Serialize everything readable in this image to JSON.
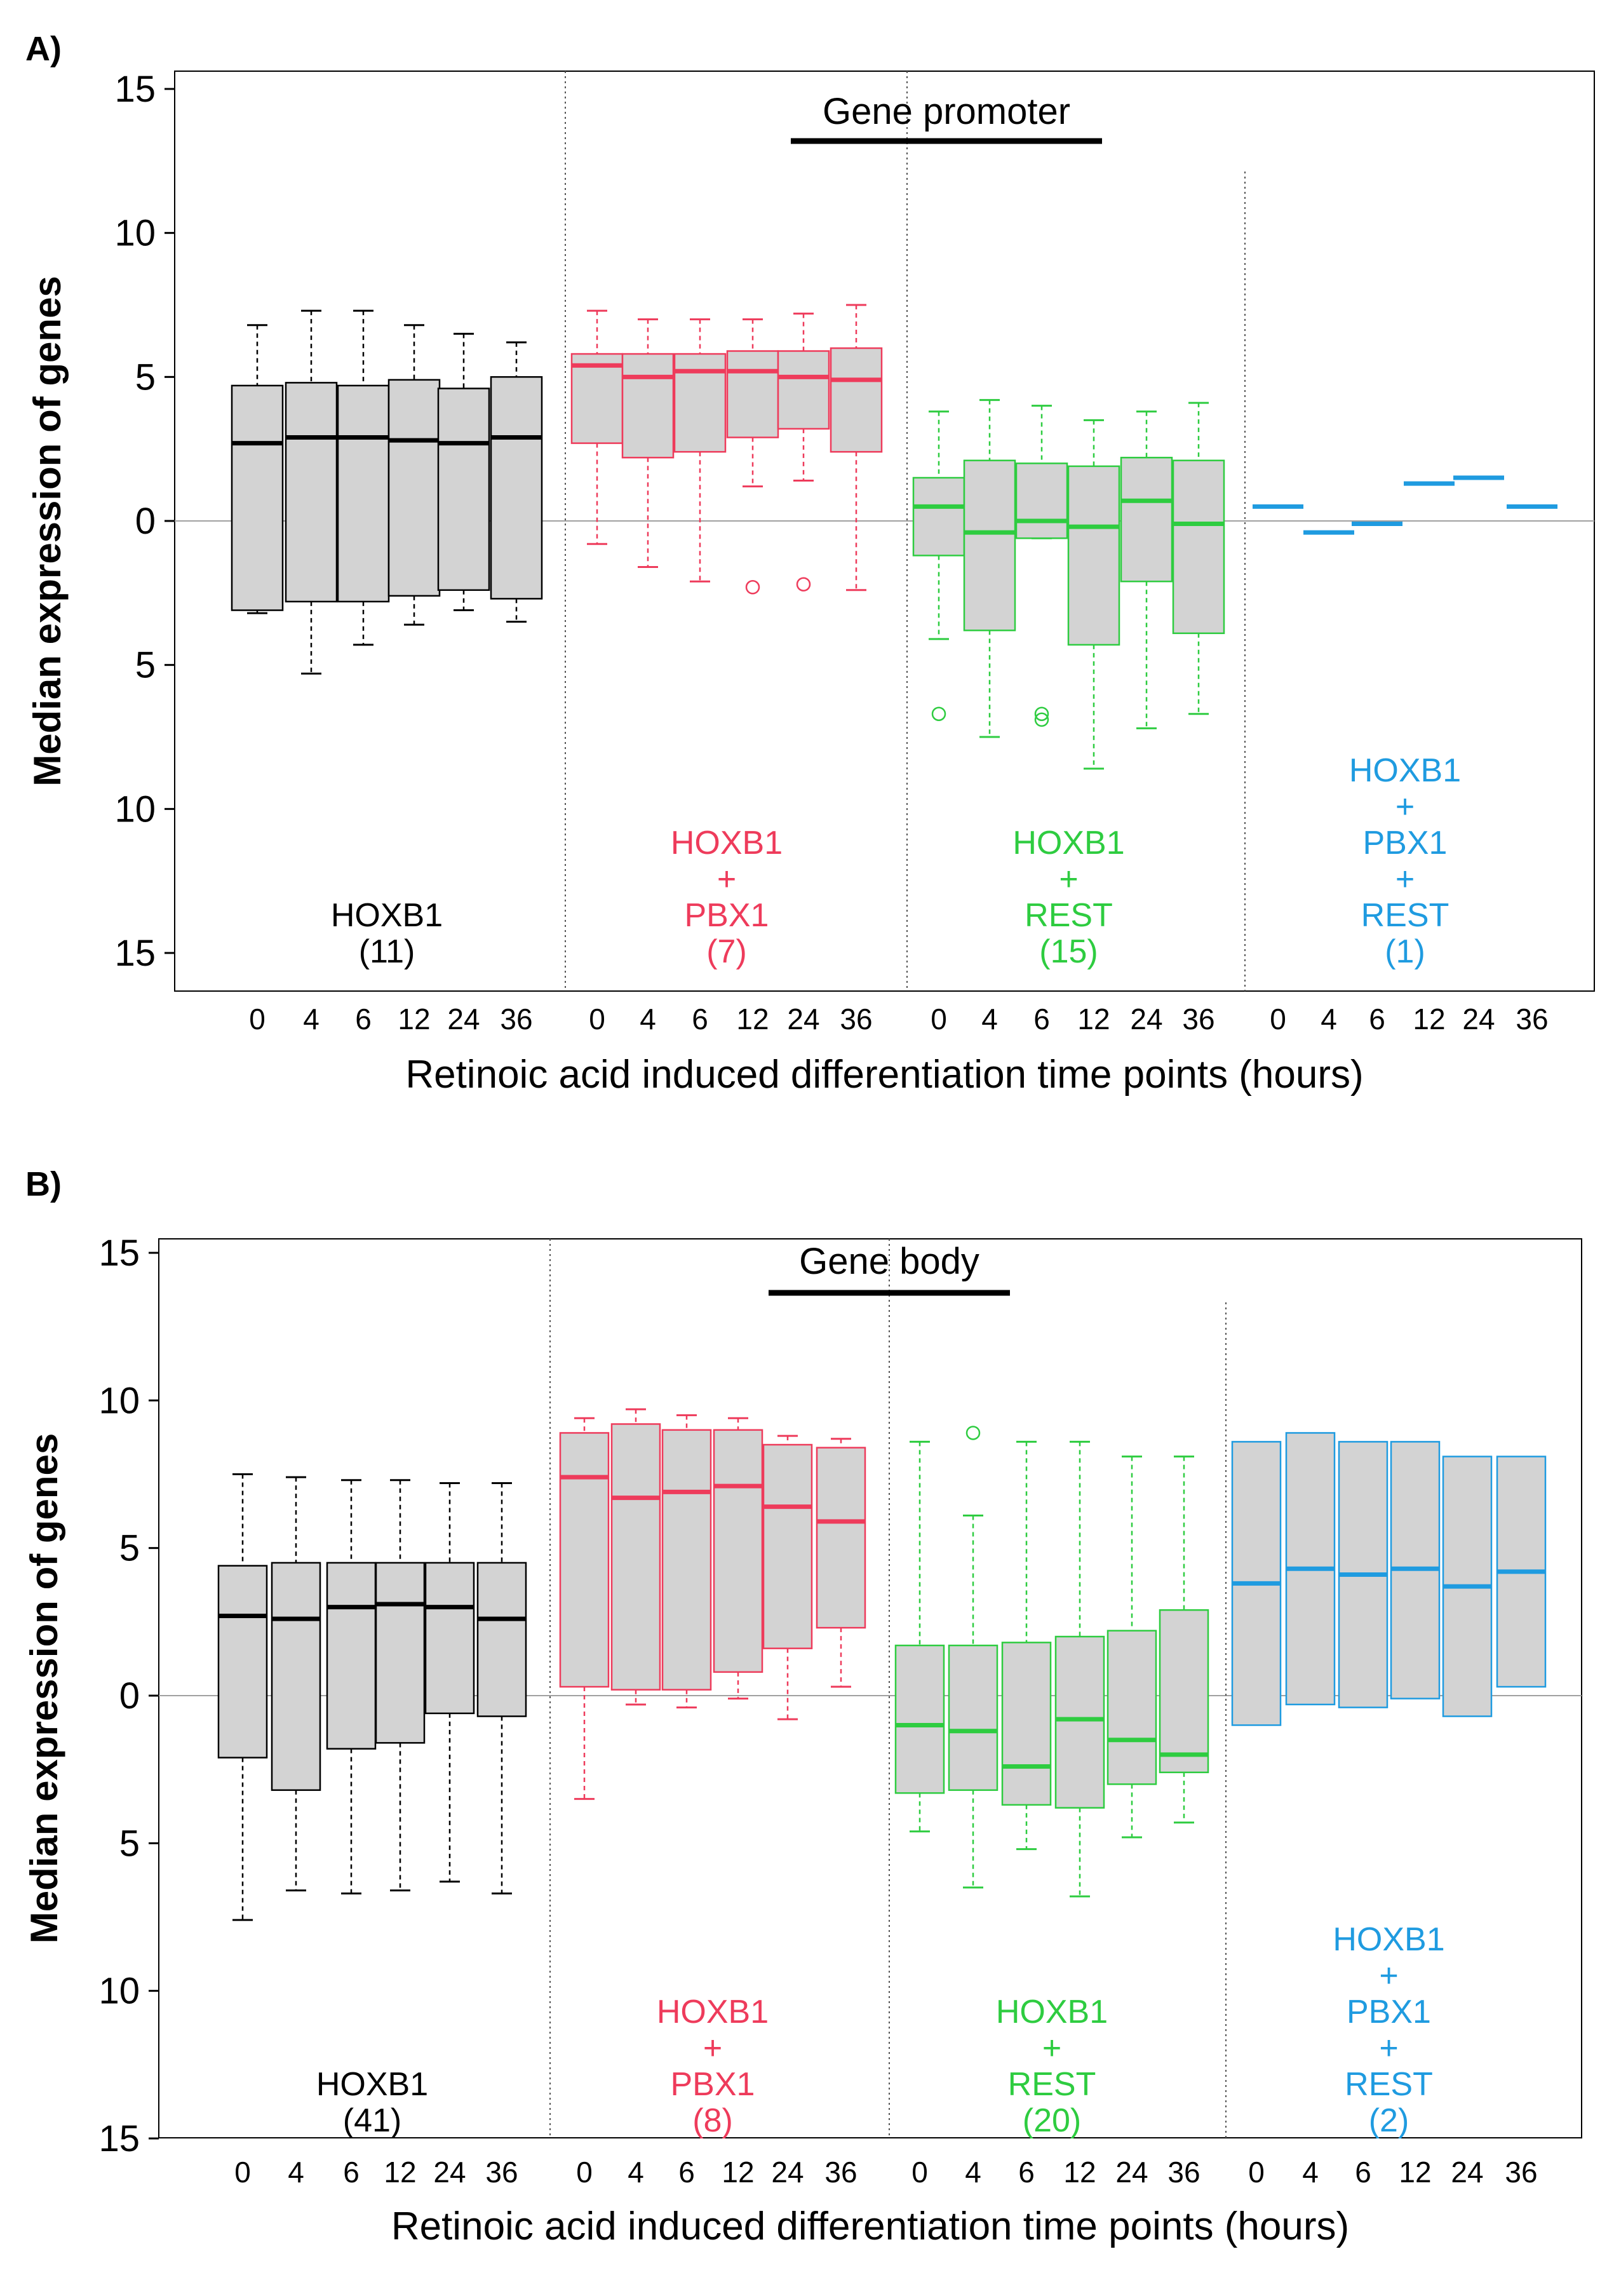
{
  "colors": {
    "group1": "#000000",
    "group2": "#ee3b5b",
    "group3": "#2ecc40",
    "group4": "#1f9be0",
    "box_fill": "#d3d3d3",
    "zero_line": "#a0a0a0",
    "divider": "#555555"
  },
  "chart_data": [
    {
      "type": "boxplot",
      "panel_label": "A)",
      "title": "Gene promoter",
      "ylabel": "Median expression of genes",
      "xlabel": "Retinoic acid induced differentiation time points (hours)",
      "ylim": [
        -16,
        16
      ],
      "yticks": [
        15,
        10,
        5,
        0,
        -5,
        -10,
        -15
      ],
      "ytick_labels": [
        "15",
        "10",
        "5",
        "0",
        "5",
        "10",
        "15"
      ],
      "categories": [
        "0",
        "4",
        "6",
        "12",
        "24",
        "36",
        "0",
        "4",
        "6",
        "12",
        "24",
        "36",
        "0",
        "4",
        "6",
        "12",
        "24",
        "36",
        "0",
        "4",
        "6",
        "12",
        "24",
        "36"
      ],
      "groups": [
        {
          "lines": [
            "HOXB1",
            "(11)"
          ],
          "color": "#000000",
          "boxes": [
            {
              "wmin": -3.2,
              "q1": -3.1,
              "med": 2.7,
              "q3": 4.7,
              "wmax": 6.8,
              "out": []
            },
            {
              "wmin": -5.3,
              "q1": -2.8,
              "med": 2.9,
              "q3": 4.8,
              "wmax": 7.3,
              "out": []
            },
            {
              "wmin": -4.3,
              "q1": -2.8,
              "med": 2.9,
              "q3": 4.7,
              "wmax": 7.3,
              "out": []
            },
            {
              "wmin": -3.6,
              "q1": -2.6,
              "med": 2.8,
              "q3": 4.9,
              "wmax": 6.8,
              "out": []
            },
            {
              "wmin": -3.1,
              "q1": -2.4,
              "med": 2.7,
              "q3": 4.6,
              "wmax": 6.5,
              "out": []
            },
            {
              "wmin": -3.5,
              "q1": -2.7,
              "med": 2.9,
              "q3": 5.0,
              "wmax": 6.2,
              "out": []
            }
          ]
        },
        {
          "lines": [
            "HOXB1",
            "+",
            "PBX1",
            "(7)"
          ],
          "color": "#ee3b5b",
          "boxes": [
            {
              "wmin": -0.8,
              "q1": 2.7,
              "med": 5.4,
              "q3": 5.8,
              "wmax": 7.3,
              "out": []
            },
            {
              "wmin": -1.6,
              "q1": 2.2,
              "med": 5.0,
              "q3": 5.8,
              "wmax": 7.0,
              "out": []
            },
            {
              "wmin": -2.1,
              "q1": 2.4,
              "med": 5.2,
              "q3": 5.8,
              "wmax": 7.0,
              "out": []
            },
            {
              "wmin": 1.2,
              "q1": 2.9,
              "med": 5.2,
              "q3": 5.9,
              "wmax": 7.0,
              "out": [
                -2.3
              ]
            },
            {
              "wmin": 1.4,
              "q1": 3.2,
              "med": 5.0,
              "q3": 5.9,
              "wmax": 7.2,
              "out": [
                -2.2
              ]
            },
            {
              "wmin": -2.4,
              "q1": 2.4,
              "med": 4.9,
              "q3": 6.0,
              "wmax": 7.5,
              "out": []
            }
          ]
        },
        {
          "lines": [
            "HOXB1",
            "+",
            "REST",
            "(15)"
          ],
          "color": "#2ecc40",
          "boxes": [
            {
              "wmin": -4.1,
              "q1": -1.2,
              "med": 0.5,
              "q3": 1.5,
              "wmax": 3.8,
              "out": [
                -6.7
              ]
            },
            {
              "wmin": -7.5,
              "q1": -3.8,
              "med": -0.4,
              "q3": 2.1,
              "wmax": 4.2,
              "out": []
            },
            {
              "wmin": -0.6,
              "q1": -0.6,
              "med": 0.0,
              "q3": 2.0,
              "wmax": 4.0,
              "out": [
                -6.7,
                -6.9
              ]
            },
            {
              "wmin": -8.6,
              "q1": -4.3,
              "med": -0.2,
              "q3": 1.9,
              "wmax": 3.5,
              "out": []
            },
            {
              "wmin": -7.2,
              "q1": -2.1,
              "med": 0.7,
              "q3": 2.2,
              "wmax": 3.8,
              "out": []
            },
            {
              "wmin": -6.7,
              "q1": -3.9,
              "med": -0.1,
              "q3": 2.1,
              "wmax": 4.1,
              "out": []
            }
          ]
        },
        {
          "lines": [
            "HOXB1",
            "+",
            "PBX1",
            "+",
            "REST",
            "(1)"
          ],
          "color": "#1f9be0",
          "boxes": [
            {
              "med": 0.5
            },
            {
              "med": -0.4
            },
            {
              "med": -0.1
            },
            {
              "med": 1.3
            },
            {
              "med": 1.5
            },
            {
              "med": 0.5
            }
          ]
        }
      ]
    },
    {
      "type": "boxplot",
      "panel_label": "B)",
      "title": "Gene body",
      "ylabel": "Median expression of genes",
      "xlabel": "Retinoic acid induced differentiation time points (hours)",
      "ylim": [
        -16,
        16
      ],
      "yticks": [
        15,
        10,
        5,
        0,
        -5,
        -10,
        -15
      ],
      "ytick_labels": [
        "15",
        "10",
        "5",
        "0",
        "5",
        "10",
        "15"
      ],
      "categories": [
        "0",
        "4",
        "6",
        "12",
        "24",
        "36",
        "0",
        "4",
        "6",
        "12",
        "24",
        "36",
        "0",
        "4",
        "6",
        "12",
        "24",
        "36",
        "0",
        "4",
        "6",
        "12",
        "24",
        "36"
      ],
      "groups": [
        {
          "lines": [
            "HOXB1",
            "(41)"
          ],
          "color": "#000000",
          "boxes": [
            {
              "wmin": -7.6,
              "q1": -2.1,
              "med": 2.7,
              "q3": 4.4,
              "wmax": 7.5,
              "out": []
            },
            {
              "wmin": -6.6,
              "q1": -3.2,
              "med": 2.6,
              "q3": 4.5,
              "wmax": 7.4,
              "out": []
            },
            {
              "wmin": -6.7,
              "q1": -1.8,
              "med": 3.0,
              "q3": 4.5,
              "wmax": 7.3,
              "out": []
            },
            {
              "wmin": -6.6,
              "q1": -1.6,
              "med": 3.1,
              "q3": 4.5,
              "wmax": 7.3,
              "out": []
            },
            {
              "wmin": -6.3,
              "q1": -0.6,
              "med": 3.0,
              "q3": 4.5,
              "wmax": 7.2,
              "out": []
            },
            {
              "wmin": -6.7,
              "q1": -0.7,
              "med": 2.6,
              "q3": 4.5,
              "wmax": 7.2,
              "out": []
            }
          ]
        },
        {
          "lines": [
            "HOXB1",
            "+",
            "PBX1",
            "(8)"
          ],
          "color": "#ee3b5b",
          "boxes": [
            {
              "wmin": -3.5,
              "q1": 0.3,
              "med": 7.4,
              "q3": 8.9,
              "wmax": 9.4,
              "out": []
            },
            {
              "wmin": -0.3,
              "q1": 0.2,
              "med": 6.7,
              "q3": 9.2,
              "wmax": 9.7,
              "out": []
            },
            {
              "wmin": -0.4,
              "q1": 0.2,
              "med": 6.9,
              "q3": 9.0,
              "wmax": 9.5,
              "out": []
            },
            {
              "wmin": -0.1,
              "q1": 0.8,
              "med": 7.1,
              "q3": 9.0,
              "wmax": 9.4,
              "out": []
            },
            {
              "wmin": -0.8,
              "q1": 1.6,
              "med": 6.4,
              "q3": 8.5,
              "wmax": 8.8,
              "out": []
            },
            {
              "wmin": 0.3,
              "q1": 2.3,
              "med": 5.9,
              "q3": 8.4,
              "wmax": 8.7,
              "out": []
            }
          ]
        },
        {
          "lines": [
            "HOXB1",
            "+",
            "REST",
            "(20)"
          ],
          "color": "#2ecc40",
          "boxes": [
            {
              "wmin": -4.6,
              "q1": -3.3,
              "med": -1.0,
              "q3": 1.7,
              "wmax": 8.6,
              "out": []
            },
            {
              "wmin": -6.5,
              "q1": -3.2,
              "med": -1.2,
              "q3": 1.7,
              "wmax": 6.1,
              "out": [
                8.9
              ]
            },
            {
              "wmin": -5.2,
              "q1": -3.7,
              "med": -2.4,
              "q3": 1.8,
              "wmax": 8.6,
              "out": []
            },
            {
              "wmin": -6.8,
              "q1": -3.8,
              "med": -0.8,
              "q3": 2.0,
              "wmax": 8.6,
              "out": []
            },
            {
              "wmin": -4.8,
              "q1": -3.0,
              "med": -1.5,
              "q3": 2.2,
              "wmax": 8.1,
              "out": []
            },
            {
              "wmin": -4.3,
              "q1": -2.6,
              "med": -2.0,
              "q3": 2.9,
              "wmax": 8.1,
              "out": []
            }
          ]
        },
        {
          "lines": [
            "HOXB1",
            "+",
            "PBX1",
            "+",
            "REST",
            "(2)"
          ],
          "color": "#1f9be0",
          "boxes": [
            {
              "q1": -1.0,
              "med": 3.8,
              "q3": 8.6
            },
            {
              "q1": -0.3,
              "med": 4.3,
              "q3": 8.9
            },
            {
              "q1": -0.4,
              "med": 4.1,
              "q3": 8.6
            },
            {
              "q1": -0.1,
              "med": 4.3,
              "q3": 8.6
            },
            {
              "q1": -0.7,
              "med": 3.7,
              "q3": 8.1
            },
            {
              "q1": 0.3,
              "med": 4.2,
              "q3": 8.1
            }
          ]
        }
      ]
    }
  ]
}
